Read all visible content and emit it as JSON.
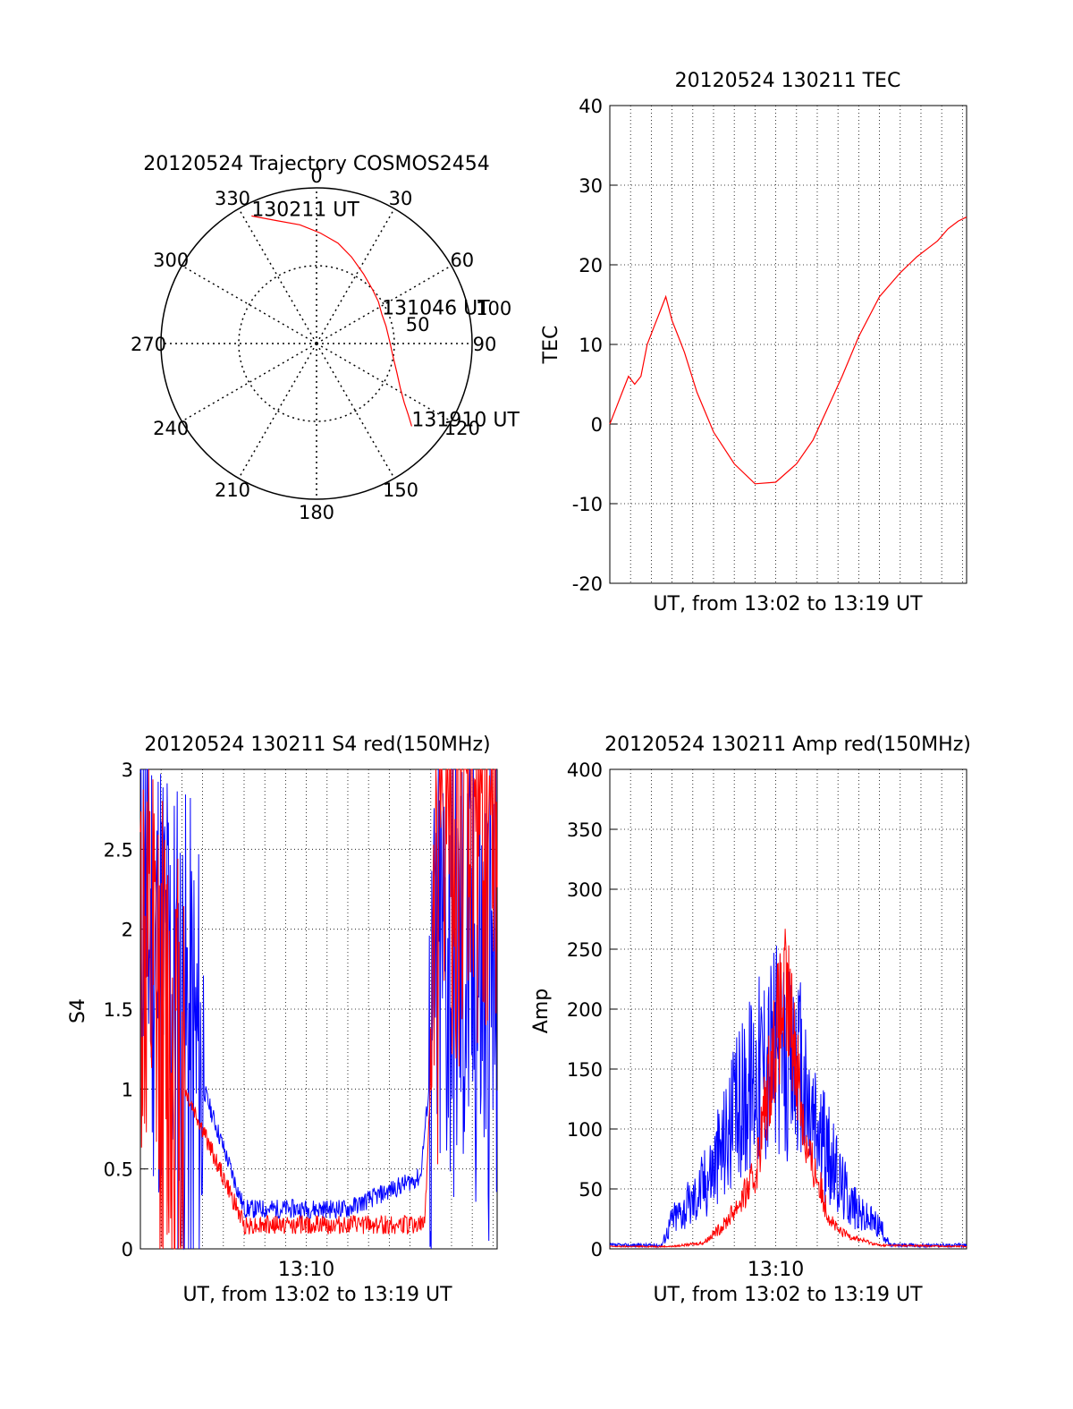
{
  "chart_data": [
    {
      "id": "polar",
      "type": "polar",
      "title": "20120524 Trajectory COSMOS2454",
      "angle_labels": [
        "0",
        "30",
        "60",
        "90",
        "120",
        "150",
        "180",
        "210",
        "240",
        "270",
        "300",
        "330"
      ],
      "radius_labels": [
        "50",
        "100"
      ],
      "radius_max": 100,
      "trajectory": [
        [
          333,
          92
        ],
        [
          342,
          83
        ],
        [
          352,
          77
        ],
        [
          2,
          71
        ],
        [
          12,
          66
        ],
        [
          22,
          60
        ],
        [
          34,
          54
        ],
        [
          46,
          50
        ],
        [
          56,
          48
        ],
        [
          66,
          46
        ],
        [
          76,
          46
        ],
        [
          88,
          47
        ],
        [
          100,
          50
        ],
        [
          110,
          55
        ],
        [
          118,
          61
        ],
        [
          124,
          68
        ],
        [
          128,
          75
        ],
        [
          131,
          81
        ]
      ],
      "annotations": [
        {
          "text": "130211 UT",
          "az": 333,
          "r": 92
        },
        {
          "text": "131046 UT",
          "az": 66,
          "r": 46
        },
        {
          "text": "131910 UT",
          "az": 131,
          "r": 81
        }
      ],
      "colors": {
        "trajectory": "#ff0000",
        "grid": "#000000"
      }
    },
    {
      "id": "tec",
      "type": "line",
      "title": "20120524 130211 TEC",
      "xlabel": "UT, from 13:02 to 13:19 UT",
      "ylabel": "TEC",
      "ylim": [
        -20,
        40
      ],
      "yticks": [
        "-20",
        "-10",
        "0",
        "10",
        "20",
        "30",
        "40"
      ],
      "xrange_minutes": [
        0,
        17.2
      ],
      "series": [
        {
          "color": "#ff0000",
          "x": [
            0,
            0.3,
            0.6,
            0.9,
            1.2,
            1.5,
            1.8,
            2.1,
            2.4,
            2.7,
            3.0,
            3.3,
            3.6,
            4.2,
            5.0,
            6.0,
            7.0,
            8.0,
            9.0,
            9.8,
            10.5,
            11.2,
            12.0,
            13.0,
            14.0,
            14.8,
            15.3,
            15.8,
            16.3,
            16.8,
            17.2
          ],
          "y": [
            0,
            2,
            4,
            6,
            5,
            6,
            10,
            12,
            14,
            16,
            13,
            11,
            9,
            4,
            -1,
            -5,
            -7.5,
            -7.3,
            -5,
            -2,
            2,
            6,
            11,
            16,
            19,
            21,
            22,
            23,
            24.5,
            25.5,
            26
          ]
        }
      ]
    },
    {
      "id": "s4",
      "type": "line",
      "title": "20120524 130211 S4 red(150MHz)",
      "xlabel": "UT, from 13:02 to 13:19 UT",
      "ylabel": "S4",
      "ylim": [
        0,
        3
      ],
      "yticks": [
        "0",
        "0.5",
        "1",
        "1.5",
        "2",
        "2.5",
        "3"
      ],
      "xticks": [
        "13:10"
      ],
      "xtick_minutes": [
        8
      ],
      "xrange_minutes": [
        0,
        17.2
      ],
      "series": [
        {
          "color": "#0000ff",
          "segments": [
            [
              0,
              2.5,
              0.45,
              2.0,
              5.0,
              0.25,
              10.0,
              0.25,
              13.5,
              0.45,
              14.5,
              1.8,
              17.2,
              1.6
            ]
          ]
        },
        {
          "color": "#ff0000",
          "segments": [
            [
              0,
              2.0,
              0.45,
              1.5,
              5.0,
              0.15,
              10.0,
              0.15,
              13.7,
              0.15,
              14.5,
              2.6,
              17.2,
              3.0
            ]
          ]
        }
      ]
    },
    {
      "id": "amp",
      "type": "line",
      "title": "20120524 130211 Amp red(150MHz)",
      "xlabel": "UT, from 13:02 to 13:19 UT",
      "ylabel": "Amp",
      "ylim": [
        0,
        400
      ],
      "yticks": [
        "0",
        "50",
        "100",
        "150",
        "200",
        "250",
        "300",
        "350",
        "400"
      ],
      "xticks": [
        "13:10"
      ],
      "xtick_minutes": [
        8
      ],
      "xrange_minutes": [
        0,
        17.2
      ],
      "series": [
        {
          "color": "#0000ff",
          "x": [
            0,
            2.5,
            3.0,
            4.0,
            5.0,
            6.0,
            7.0,
            7.5,
            8.0,
            8.5,
            9.0,
            9.5,
            10.0,
            10.5,
            11.0,
            12.0,
            13.0,
            13.5,
            14.5,
            17.2
          ],
          "y": [
            3,
            3,
            25,
            40,
            70,
            110,
            150,
            160,
            170,
            150,
            160,
            120,
            100,
            80,
            60,
            30,
            20,
            3,
            3,
            3
          ]
        },
        {
          "color": "#ff0000",
          "x": [
            0,
            3.0,
            4.5,
            5.5,
            6.5,
            7.0,
            7.5,
            8.0,
            8.5,
            9.0,
            9.5,
            10.0,
            10.5,
            11.0,
            12.0,
            13.0,
            17.2
          ],
          "y": [
            2,
            2,
            5,
            20,
            45,
            60,
            120,
            180,
            210,
            160,
            80,
            60,
            30,
            15,
            8,
            3,
            2
          ]
        }
      ]
    }
  ]
}
